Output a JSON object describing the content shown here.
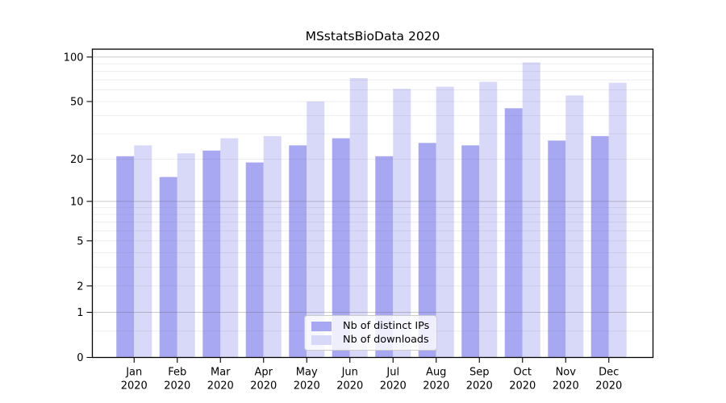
{
  "title": "MSstatsBioData 2020",
  "chart_data": {
    "type": "bar",
    "title": "MSstatsBioData 2020",
    "categories": [
      "Jan",
      "Feb",
      "Mar",
      "Apr",
      "May",
      "Jun",
      "Jul",
      "Aug",
      "Sep",
      "Oct",
      "Nov",
      "Dec"
    ],
    "year": "2020",
    "series": [
      {
        "name": "Nb of distinct IPs",
        "color": "#a8a8f2",
        "values": [
          21,
          15,
          23,
          19,
          25,
          28,
          21,
          26,
          25,
          45,
          27,
          29
        ]
      },
      {
        "name": "Nb of downloads",
        "color": "#d8d8f8",
        "values": [
          25,
          22,
          28,
          29,
          50,
          72,
          61,
          63,
          68,
          92,
          55,
          67
        ]
      }
    ],
    "y_scale": "log1p",
    "ylim": [
      0,
      113
    ],
    "y_ticks": [
      0,
      1,
      2,
      5,
      10,
      20,
      50,
      100
    ],
    "grid_major": [
      1,
      10,
      100
    ],
    "grid_minor": [
      0.5,
      2,
      3,
      4,
      5,
      6,
      7,
      8,
      9,
      20,
      30,
      40,
      50,
      60,
      70,
      80,
      90
    ],
    "grid": "horizontal",
    "legend_position": "bottom-center",
    "xlabel": "",
    "ylabel": ""
  }
}
